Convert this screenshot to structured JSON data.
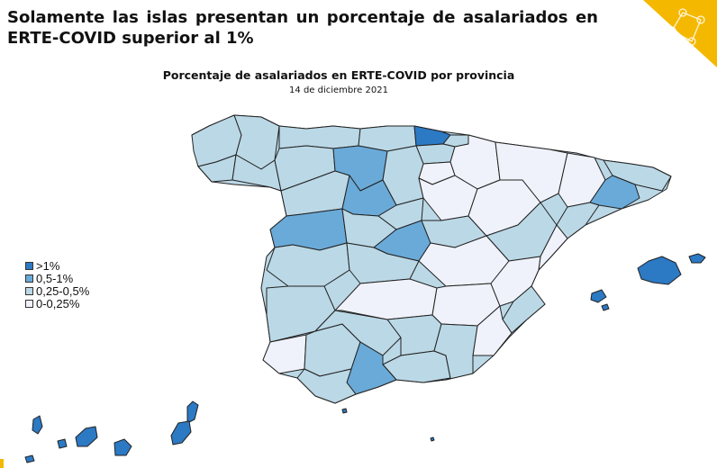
{
  "headline": "Solamente las islas presentan un porcentaje de asalariados en ERTE-COVID superior al 1%",
  "map": {
    "title": "Porcentaje de asalariados en ERTE-COVID por provincia",
    "subtitle": "14 de diciembre 2021"
  },
  "legend": [
    {
      "label": ">1%",
      "color": "#2c79c4"
    },
    {
      "label": "0,5-1%",
      "color": "#6aaad8"
    },
    {
      "label": "0,25-0,5%",
      "color": "#bbd8e6"
    },
    {
      "label": "0-0,25%",
      "color": "#eff2fa"
    }
  ],
  "colors": {
    "accent": "#f5b800",
    "outline": "#222222"
  }
}
